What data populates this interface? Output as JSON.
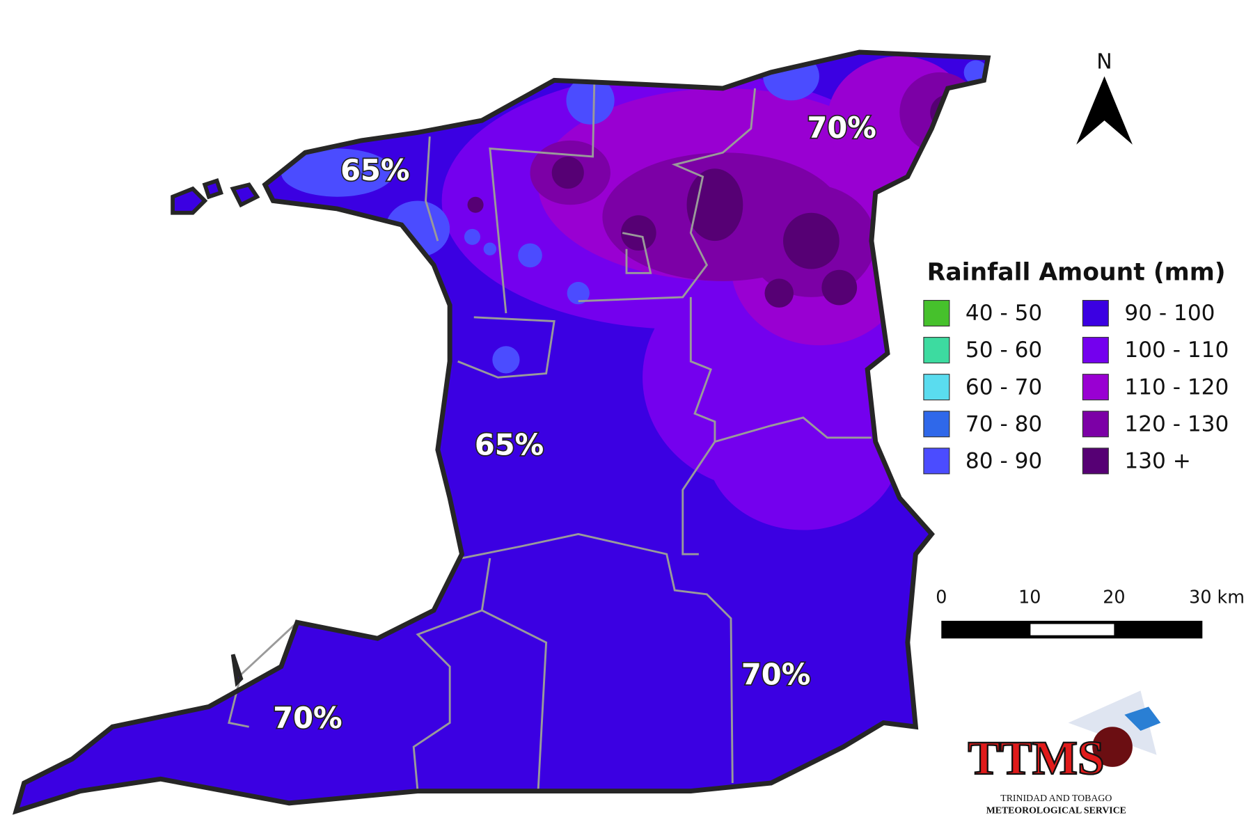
{
  "title": "Rainfall Amount (mm)",
  "legend": [
    {
      "label": "40 - 50",
      "color": "#46c12c"
    },
    {
      "label": "50 - 60",
      "color": "#3ddba0"
    },
    {
      "label": "60 - 70",
      "color": "#5adcef"
    },
    {
      "label": "70 - 80",
      "color": "#2f68ea"
    },
    {
      "label": "80 - 90",
      "color": "#4b4cff"
    },
    {
      "label": "90 - 100",
      "color": "#3b00e2"
    },
    {
      "label": "100 - 110",
      "color": "#7400ee"
    },
    {
      "label": "110 - 120",
      "color": "#9900d2"
    },
    {
      "label": "120 - 130",
      "color": "#7c00a6"
    },
    {
      "label": "130 +",
      "color": "#560074"
    }
  ],
  "map_labels": [
    "65%",
    "70%",
    "65%",
    "70%",
    "70%"
  ],
  "north": "N",
  "scale_bar": [
    "0",
    "10",
    "20",
    "30 km"
  ],
  "logo": {
    "name": "TTMS",
    "line1": "TRINIDAD AND TOBAGO",
    "line2": "METEOROLOGICAL SERVICE"
  }
}
